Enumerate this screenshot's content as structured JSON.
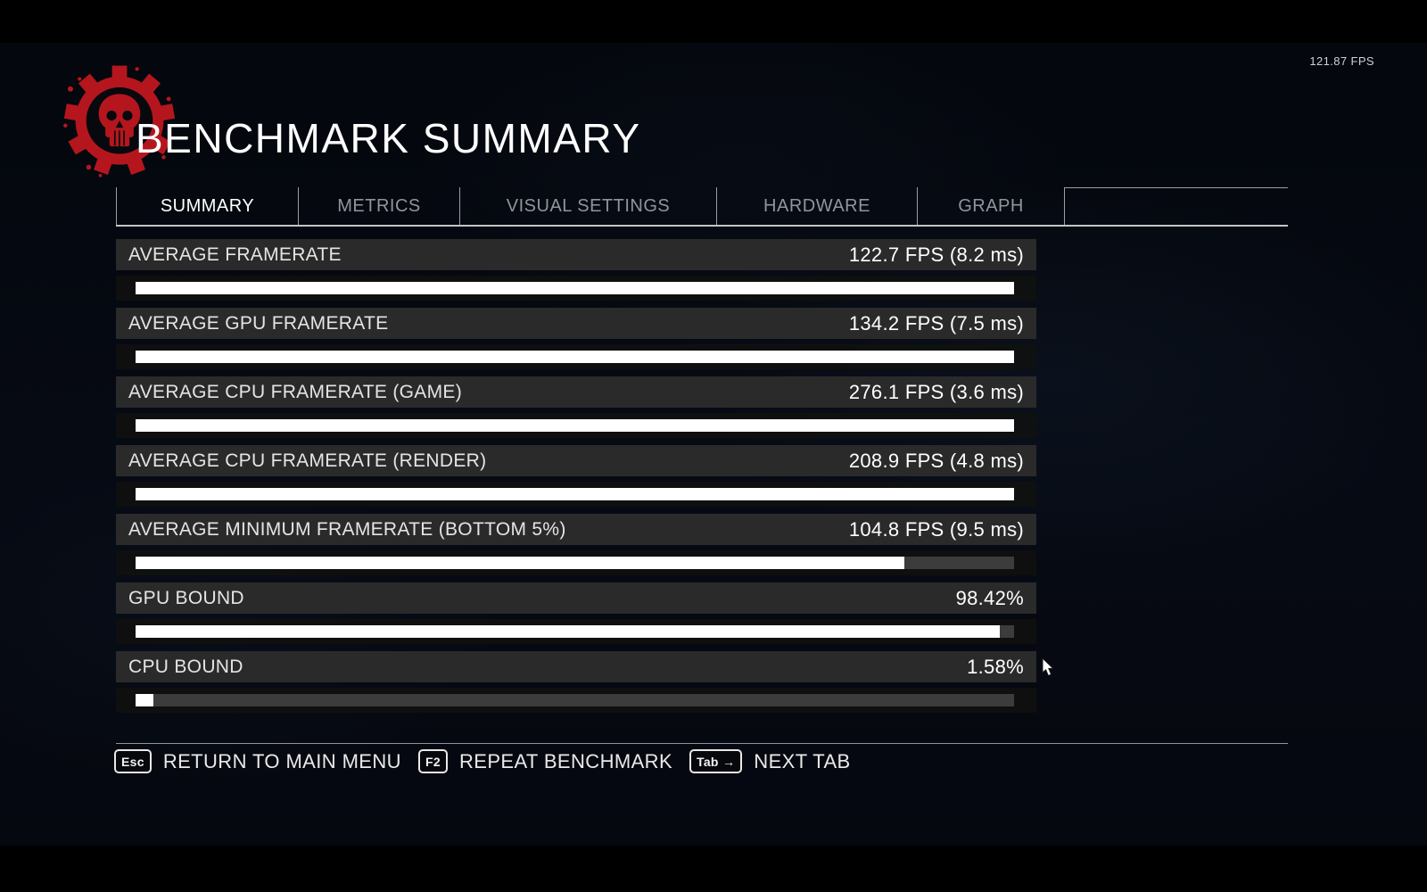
{
  "hud": {
    "fps_counter": "121.87 FPS"
  },
  "header": {
    "title": "BENCHMARK SUMMARY"
  },
  "tabs": {
    "items": [
      {
        "label": "SUMMARY",
        "active": true
      },
      {
        "label": "METRICS",
        "active": false
      },
      {
        "label": "VISUAL SETTINGS",
        "active": false
      },
      {
        "label": "HARDWARE",
        "active": false
      },
      {
        "label": "GRAPH",
        "active": false
      }
    ]
  },
  "metrics": [
    {
      "label": "AVERAGE FRAMERATE",
      "value": "122.7 FPS (8.2 ms)",
      "fill_pct": 100
    },
    {
      "label": "AVERAGE GPU FRAMERATE",
      "value": "134.2 FPS (7.5 ms)",
      "fill_pct": 100
    },
    {
      "label": "AVERAGE CPU FRAMERATE (GAME)",
      "value": "276.1 FPS (3.6 ms)",
      "fill_pct": 100
    },
    {
      "label": "AVERAGE CPU FRAMERATE (RENDER)",
      "value": "208.9 FPS (4.8 ms)",
      "fill_pct": 100
    },
    {
      "label": "AVERAGE MINIMUM FRAMERATE (BOTTOM 5%)",
      "value": "104.8 FPS (9.5 ms)",
      "fill_pct": 87.5
    },
    {
      "label": "GPU BOUND",
      "value": "98.42%",
      "fill_pct": 98.42
    },
    {
      "label": "CPU BOUND",
      "value": "1.58%",
      "fill_pct": 2
    }
  ],
  "footer": {
    "hints": [
      {
        "key": "Esc",
        "label": "RETURN TO MAIN MENU"
      },
      {
        "key": "F2",
        "label": "REPEAT BENCHMARK"
      },
      {
        "key": "Tab →",
        "label": "NEXT TAB"
      }
    ]
  },
  "colors": {
    "accent_red": "#b5161d",
    "bar_fill": "#ffffff",
    "row_band": "#2c2c2c",
    "background": "#05080f"
  }
}
